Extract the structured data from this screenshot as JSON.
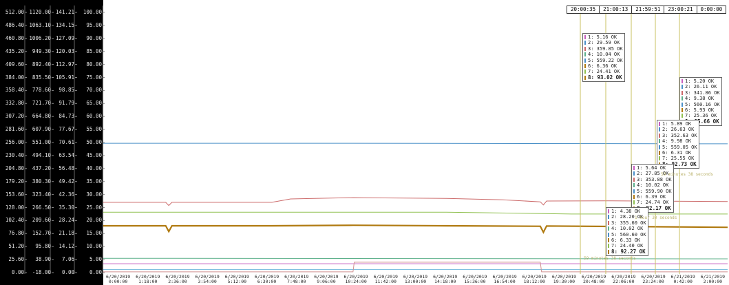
{
  "chart_data": {
    "type": "line",
    "y_axes": [
      {
        "name": "axis1",
        "ticks": [
          "512.00",
          "486.40",
          "460.80",
          "435.20",
          "409.60",
          "384.00",
          "358.40",
          "332.80",
          "307.20",
          "281.60",
          "256.00",
          "230.40",
          "204.80",
          "179.20",
          "153.60",
          "128.00",
          "102.40",
          "76.80",
          "51.20",
          "25.60",
          "0.00"
        ]
      },
      {
        "name": "axis2",
        "ticks": [
          "1120.00",
          "1063.10",
          "1006.20",
          "949.30",
          "892.40",
          "835.50",
          "778.60",
          "721.70",
          "664.80",
          "607.90",
          "551.00",
          "494.10",
          "437.20",
          "380.30",
          "323.40",
          "266.50",
          "209.60",
          "152.70",
          "95.80",
          "38.90",
          "-18.00"
        ]
      },
      {
        "name": "axis3",
        "ticks": [
          "141.21",
          "134.15",
          "127.09",
          "120.03",
          "112.97",
          "105.91",
          "98.85",
          "91.79",
          "84.73",
          "77.67",
          "70.61",
          "63.54",
          "56.48",
          "49.42",
          "42.36",
          "35.30",
          "28.24",
          "21.18",
          "14.12",
          "7.06",
          "0.00"
        ]
      },
      {
        "name": "axis4",
        "ticks": [
          "100.00",
          "95.00",
          "90.00",
          "85.00",
          "80.00",
          "75.00",
          "70.00",
          "65.00",
          "60.00",
          "55.00",
          "50.00",
          "45.00",
          "40.00",
          "35.00",
          "30.00",
          "25.00",
          "20.00",
          "15.00",
          "10.00",
          "5.00",
          "0.00"
        ]
      }
    ],
    "x_ticks": [
      [
        "6/20/2019",
        "0:00:00"
      ],
      [
        "6/20/2019",
        "1:18:00"
      ],
      [
        "6/20/2019",
        "2:36:00"
      ],
      [
        "6/20/2019",
        "3:54:00"
      ],
      [
        "6/20/2019",
        "5:12:00"
      ],
      [
        "6/20/2019",
        "6:30:00"
      ],
      [
        "6/20/2019",
        "7:48:00"
      ],
      [
        "6/20/2019",
        "9:06:00"
      ],
      [
        "6/20/2019",
        "10:24:00"
      ],
      [
        "6/20/2019",
        "11:42:00"
      ],
      [
        "6/20/2019",
        "13:00:00"
      ],
      [
        "6/20/2019",
        "14:18:00"
      ],
      [
        "6/20/2019",
        "15:36:00"
      ],
      [
        "6/20/2019",
        "16:54:00"
      ],
      [
        "6/20/2019",
        "18:12:00"
      ],
      [
        "6/20/2019",
        "19:30:00"
      ],
      [
        "6/20/2019",
        "20:48:00"
      ],
      [
        "6/20/2019",
        "22:06:00"
      ],
      [
        "6/20/2019",
        "23:24:00"
      ],
      [
        "6/21/2019",
        "0:42:00"
      ],
      [
        "6/21/2019",
        "2:00:00"
      ]
    ],
    "series": [
      {
        "color": "#4a90c8",
        "level": 49.7,
        "points": [
          [
            0,
            49.7
          ],
          [
            40,
            49.7
          ],
          [
            100,
            49.5
          ]
        ]
      },
      {
        "color": "#cc6a6a",
        "level": 27.0,
        "points": [
          [
            0,
            27.0
          ],
          [
            10,
            27.0
          ],
          [
            10.5,
            25.8
          ],
          [
            11,
            27.0
          ],
          [
            27,
            27.0
          ],
          [
            30,
            28.3
          ],
          [
            40,
            28.8
          ],
          [
            55,
            28.5
          ],
          [
            64,
            28.0
          ],
          [
            70,
            27.2
          ],
          [
            70.5,
            26.0
          ],
          [
            71,
            27.5
          ],
          [
            80,
            27.6
          ],
          [
            100,
            27.3
          ]
        ]
      },
      {
        "color": "#90c050",
        "level": 23.2,
        "points": [
          [
            0,
            23.2
          ],
          [
            55,
            23.2
          ],
          [
            75,
            22.5
          ],
          [
            100,
            22.5
          ]
        ]
      },
      {
        "color": "#b07a10",
        "level": 17.8,
        "points": [
          [
            0,
            18.0
          ],
          [
            10,
            18.0
          ],
          [
            10.5,
            15.8
          ],
          [
            11,
            18.0
          ],
          [
            27,
            18.0
          ],
          [
            40,
            18.2
          ],
          [
            55,
            18.0
          ],
          [
            70,
            17.8
          ],
          [
            70.5,
            15.5
          ],
          [
            71,
            17.9
          ],
          [
            90,
            17.6
          ],
          [
            100,
            17.4
          ]
        ]
      },
      {
        "color": "#5cb08a",
        "level": 5.5,
        "points": [
          [
            0,
            5.5
          ],
          [
            100,
            5.3
          ]
        ]
      },
      {
        "color": "#c860c0",
        "level": 3.4,
        "points": [
          [
            0,
            3.4
          ],
          [
            100,
            3.4
          ]
        ]
      },
      {
        "color": "#80c0e0",
        "level": 1.2,
        "points": [
          [
            0,
            1.2
          ],
          [
            100,
            1.2
          ]
        ]
      },
      {
        "color": "#d09090",
        "level": 0.3,
        "points": [
          [
            0,
            0.3
          ],
          [
            40,
            0.3
          ],
          [
            40.2,
            4.0
          ],
          [
            70,
            4.0
          ],
          [
            70.2,
            0.3
          ],
          [
            100,
            0.3
          ]
        ]
      }
    ],
    "cursors": [
      "20:00:35",
      "21:00:13",
      "21:59:51",
      "23:00:21",
      "0:00:00"
    ],
    "tooltips": [
      {
        "rows": [
          "1: 5.16 OK",
          "2: 29.59 OK",
          "3: 359.85 OK",
          "4: 10.04 OK",
          "5: 559.22 OK",
          "6: 6.36 OK",
          "7: 24.41 OK",
          "8: 93.02 OK"
        ]
      },
      {
        "rows": [
          "1: 5.20 OK",
          "2: 26.11 OK",
          "3: 341.86 OK",
          "4: 9.38 OK",
          "5: 560.16 OK",
          "6: 5.93 OK",
          "7: 25.36 OK",
          "8: 85.66 OK"
        ]
      },
      {
        "rows": [
          "1: 5.89 OK",
          "2: 26.63 OK",
          "3: 352.63 OK",
          "4: 9.98 OK",
          "5: 559.05 OK",
          "6: 6.31 OK",
          "7: 25.55 OK",
          "8: 92.73 OK"
        ]
      },
      {
        "rows": [
          "1: 5.64 OK",
          "2: 27.85 OK",
          "3: 353.88 OK",
          "4: 10.02 OK",
          "5: 559.90 OK",
          "6: 6.39 OK",
          "7: 24.74 OK",
          "8: 92.17 OK"
        ]
      },
      {
        "rows": [
          "1: 4.38 OK",
          "2: 28.20 OK",
          "3: 355.60 OK",
          "4: 10.02 OK",
          "5: 560.60 OK",
          "6: 6.33 OK",
          "7: 24.40 OK",
          "8: 92.27 OK"
        ]
      }
    ],
    "annotations": [
      "59 minutes 38 seconds",
      "1 hour 30 seconds",
      "59 minutes 38 seconds"
    ],
    "series_colors": [
      "#c860c0",
      "#4a90c8",
      "#cc6a6a",
      "#5cb08a",
      "#4a90c8",
      "#b07a10",
      "#90c050",
      "#b07a10"
    ]
  }
}
